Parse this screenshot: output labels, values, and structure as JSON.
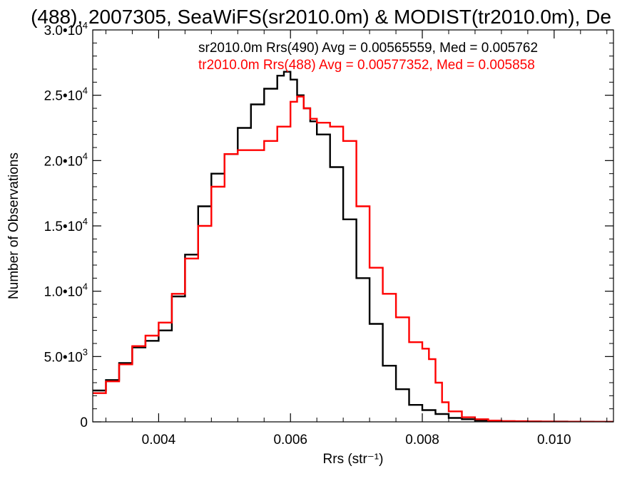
{
  "chart_data": {
    "type": "line",
    "title": "(488), 2007305, SeaWiFS(sr2010.0m) & MODIST(tr2010.0m), De",
    "xlabel": "Rrs (str⁻¹)",
    "ylabel": "Number of Observations",
    "xlim": [
      0.003,
      0.0109
    ],
    "ylim": [
      0,
      30000
    ],
    "x_tick_values": [
      0.004,
      0.006,
      0.008,
      0.01
    ],
    "x_tick_labels": [
      "0.004",
      "0.006",
      "0.008",
      "0.010"
    ],
    "y_tick_values": [
      0,
      5000,
      10000,
      15000,
      20000,
      25000,
      30000
    ],
    "y_tick_labels": [
      {
        "mantissa": "0",
        "exp": ""
      },
      {
        "mantissa": "5.0•10",
        "exp": "3"
      },
      {
        "mantissa": "1.0•10",
        "exp": "4"
      },
      {
        "mantissa": "1.5•10",
        "exp": "4"
      },
      {
        "mantissa": "2.0•10",
        "exp": "4"
      },
      {
        "mantissa": "2.5•10",
        "exp": "4"
      },
      {
        "mantissa": "3.0•10",
        "exp": "4"
      }
    ],
    "grid": false,
    "legend_position": "top-right",
    "annotations": [
      {
        "text": "sr2010.0m Rrs(490) Avg = 0.00565559, Med = 0.005762",
        "color": "#000000"
      },
      {
        "text": "tr2010.0m Rrs(488) Avg = 0.00577352, Med = 0.005858",
        "color": "#ff0000"
      }
    ],
    "series": [
      {
        "color": "#000000",
        "x": [
          0.003,
          0.0032,
          0.0034,
          0.0036,
          0.0038,
          0.004,
          0.0042,
          0.0044,
          0.0046,
          0.0048,
          0.005,
          0.0052,
          0.0054,
          0.0056,
          0.0058,
          0.0059,
          0.006,
          0.0061,
          0.0062,
          0.0063,
          0.0064,
          0.0066,
          0.0068,
          0.007,
          0.0072,
          0.0074,
          0.0076,
          0.0078,
          0.008,
          0.0082,
          0.0084,
          0.0086,
          0.0088,
          0.009,
          0.0092,
          0.0094,
          0.0096,
          0.0098,
          0.01,
          0.0102,
          0.0104,
          0.0106,
          0.0108,
          0.0109
        ],
        "y": [
          2400,
          3200,
          4500,
          5700,
          6200,
          7000,
          9600,
          12800,
          16500,
          19000,
          20500,
          22500,
          24300,
          25500,
          26500,
          26800,
          26200,
          25000,
          24000,
          23000,
          22000,
          19500,
          15500,
          11000,
          7500,
          4300,
          2500,
          1300,
          900,
          600,
          300,
          200,
          100,
          80,
          50,
          40,
          30,
          20,
          20,
          10,
          10,
          5,
          5,
          5
        ]
      },
      {
        "color": "#ff0000",
        "x": [
          0.003,
          0.0032,
          0.0034,
          0.0036,
          0.0038,
          0.004,
          0.0042,
          0.0044,
          0.0046,
          0.0048,
          0.005,
          0.0052,
          0.0054,
          0.0056,
          0.0058,
          0.006,
          0.0061,
          0.0062,
          0.0063,
          0.0064,
          0.0066,
          0.0068,
          0.007,
          0.0072,
          0.0074,
          0.0076,
          0.0078,
          0.008,
          0.0081,
          0.0082,
          0.0083,
          0.0084,
          0.0086,
          0.0088,
          0.009,
          0.0092,
          0.0094,
          0.0096,
          0.0098,
          0.01,
          0.0102,
          0.0104,
          0.0106,
          0.0108,
          0.0109
        ],
        "y": [
          2200,
          3100,
          4400,
          5800,
          6600,
          7600,
          9800,
          12500,
          15000,
          18000,
          20500,
          20800,
          20800,
          21500,
          22600,
          24500,
          24900,
          24000,
          23200,
          22900,
          22600,
          21500,
          16500,
          11800,
          9800,
          8000,
          6100,
          5600,
          4800,
          3000,
          1500,
          800,
          350,
          200,
          100,
          60,
          50,
          30,
          20,
          10,
          10,
          5,
          5,
          5,
          5
        ]
      }
    ]
  }
}
